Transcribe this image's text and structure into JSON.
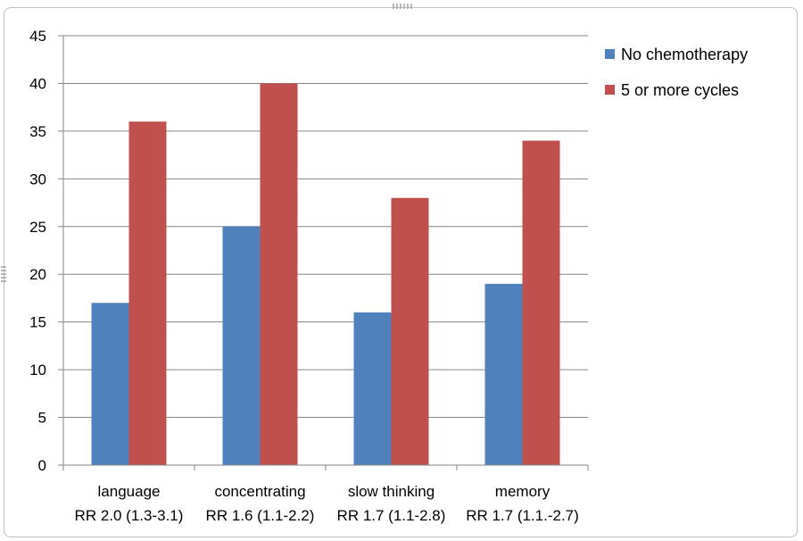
{
  "chart_data": {
    "type": "bar",
    "categories": [
      {
        "line1": "language",
        "line2": "RR 2.0 (1.3-3.1)"
      },
      {
        "line1": "concentrating",
        "line2": "RR 1.6 (1.1-2.2)"
      },
      {
        "line1": "slow thinking",
        "line2": "RR 1.7 (1.1-2.8)"
      },
      {
        "line1": "memory",
        "line2": "RR 1.7 (1.1.-2.7)"
      }
    ],
    "series": [
      {
        "name": "No chemotherapy",
        "color": "#4f81bd",
        "values": [
          17,
          25,
          16,
          19
        ]
      },
      {
        "name": "5 or more cycles",
        "color": "#c0504d",
        "values": [
          36,
          40,
          28,
          34
        ]
      }
    ],
    "y_ticks": [
      "0",
      "5",
      "10",
      "15",
      "20",
      "25",
      "30",
      "35",
      "40",
      "45"
    ],
    "ylim": [
      0,
      45
    ],
    "grid": true,
    "legend": "right"
  }
}
